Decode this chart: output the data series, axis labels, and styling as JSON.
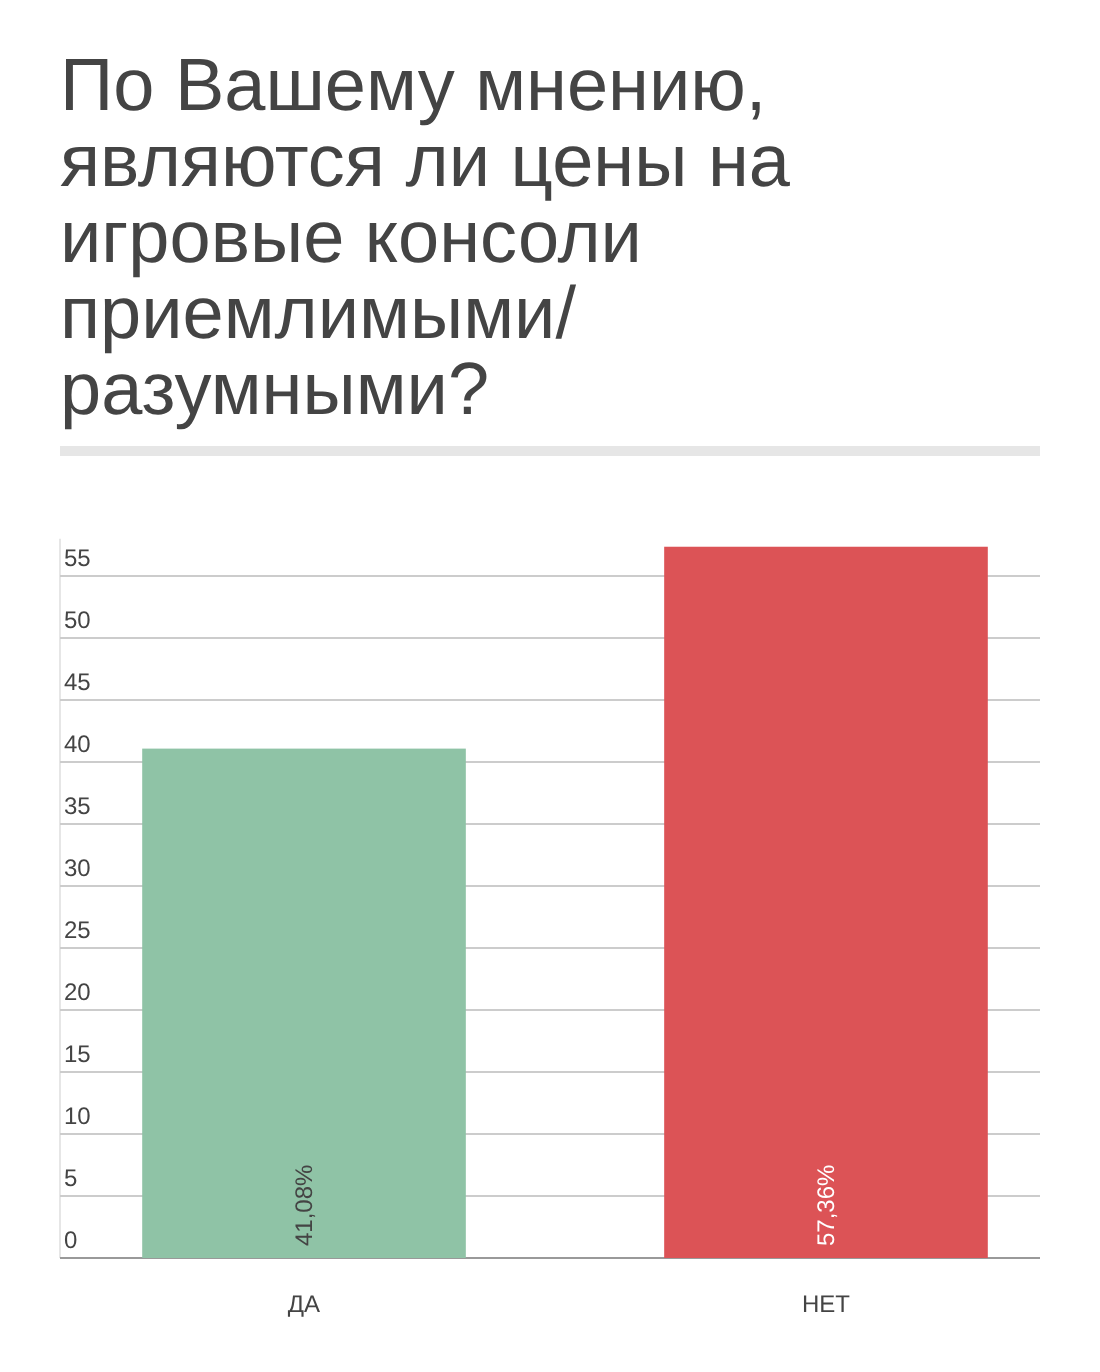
{
  "chart_data": {
    "type": "bar",
    "title": "По Вашему мнению, являются ли цены на игровые консоли приемлимыми/ разумными?",
    "categories": [
      "ДА",
      "НЕТ"
    ],
    "values": [
      41.08,
      57.36
    ],
    "colors": [
      "#8fc3a6",
      "#dc5356"
    ],
    "value_labels": [
      "41,08%",
      "57,36%"
    ],
    "ylim": [
      0,
      58
    ],
    "yticks": [
      0,
      5,
      10,
      15,
      20,
      25,
      30,
      35,
      40,
      45,
      50,
      55
    ],
    "grid": "y"
  }
}
